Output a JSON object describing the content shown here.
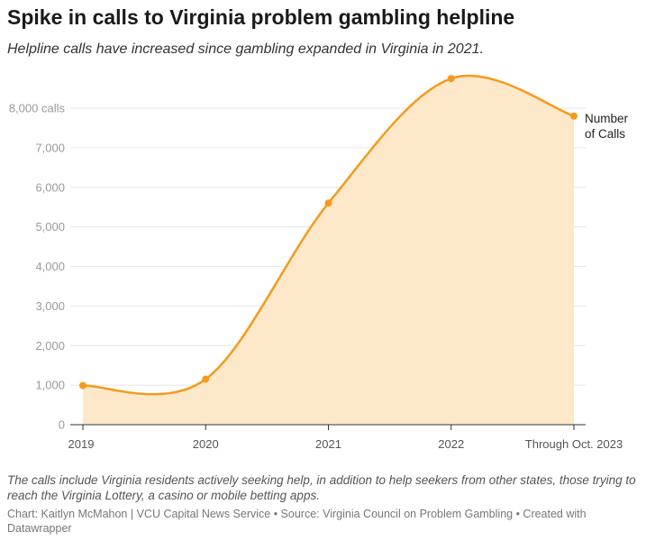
{
  "chart_data": {
    "type": "area",
    "title": "Spike in calls to Virginia problem gambling helpline",
    "subtitle": "Helpline calls have increased since gambling expanded in Virginia in 2021.",
    "categories": [
      "2019",
      "2020",
      "2021",
      "2022",
      "Through Oct. 2023"
    ],
    "series": [
      {
        "name": "Number of Calls",
        "name_lines": [
          "Number",
          "of Calls"
        ],
        "values": [
          990,
          1150,
          5600,
          8750,
          7800
        ]
      }
    ],
    "y_ticks": [
      {
        "value": 0,
        "label": "0"
      },
      {
        "value": 1000,
        "label": "1,000"
      },
      {
        "value": 2000,
        "label": "2,000"
      },
      {
        "value": 3000,
        "label": "3,000"
      },
      {
        "value": 4000,
        "label": "4,000"
      },
      {
        "value": 5000,
        "label": "5,000"
      },
      {
        "value": 6000,
        "label": "6,000"
      },
      {
        "value": 7000,
        "label": "7,000"
      },
      {
        "value": 8000,
        "label": "8,000 calls"
      }
    ],
    "ylim": [
      0,
      8000
    ],
    "grid": true,
    "colors": {
      "line": "#f59a1c",
      "fill": "#fde9c9",
      "grid": "#e6e6e6"
    }
  },
  "notes": "The calls include Virginia residents actively seeking help, in addition to help seekers from other states, those trying to reach the Virginia Lottery, a casino or mobile betting apps.",
  "credit": "Chart: Kaitlyn McMahon | VCU Capital News Service • Source: Virginia Council on Problem Gambling • Created with Datawrapper"
}
